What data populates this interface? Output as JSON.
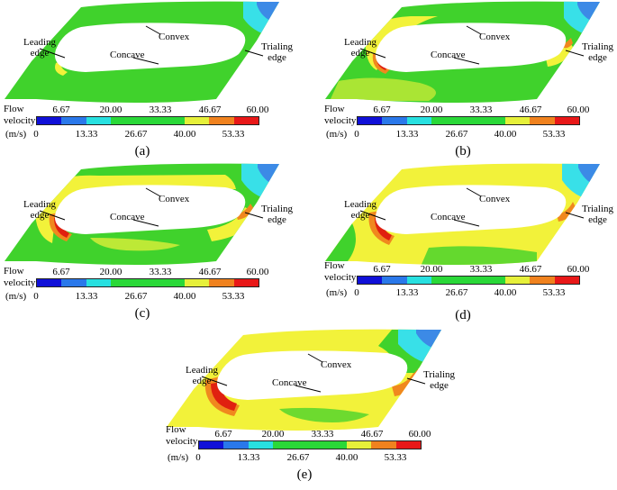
{
  "annotations": {
    "leading": [
      "Leading",
      "edge"
    ],
    "convex": "Convex",
    "concave": "Concave",
    "trailing": [
      "Trialing",
      "edge"
    ]
  },
  "legend": {
    "title": [
      "Flow",
      "velocity"
    ],
    "units": "(m/s)",
    "top_ticks": [
      "6.67",
      "20.00",
      "33.33",
      "46.67",
      "60.00"
    ],
    "bottom_ticks": [
      "0",
      "13.33",
      "26.67",
      "40.00",
      "53.33"
    ],
    "colors": [
      "#1010d8",
      "#2a78ea",
      "#28e0e0",
      "#2ad838",
      "#2ad838",
      "#2ad838",
      "#e6f03a",
      "#f0821e",
      "#e81818"
    ]
  },
  "panels": [
    {
      "id": "a",
      "caption": "(a)"
    },
    {
      "id": "b",
      "caption": "(b)"
    },
    {
      "id": "c",
      "caption": "(c)"
    },
    {
      "id": "d",
      "caption": "(d)"
    },
    {
      "id": "e",
      "caption": "(e)"
    }
  ],
  "colors": {
    "green": "#40d22c",
    "yellow": "#f2f23a",
    "orange": "#f0881e",
    "red": "#e02010",
    "cyan": "#38e0e8",
    "blue": "#3c8ae6"
  }
}
